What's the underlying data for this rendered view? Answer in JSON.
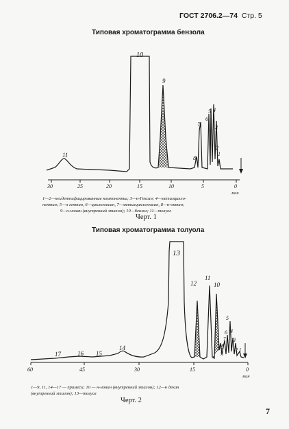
{
  "header": {
    "gost": "ГОСТ 2706.2—74",
    "page": "Стр. 5"
  },
  "figure1": {
    "title": "Типовая хроматограмма бензола",
    "peaks": [
      "11",
      "10",
      "9",
      "8",
      "7",
      "6",
      "5",
      "4",
      "3",
      "2",
      "1"
    ],
    "ticks": [
      "30",
      "25",
      "20",
      "15",
      "10",
      "5",
      "0"
    ],
    "unit": "мин",
    "caption": [
      "1—2—неидентифицированные компоненты; 3—н-Гексан; 4—метилцикло-",
      "пентан; 5—н гептан, 6—циклогексан, 7—метилциклогексан, 8—н-октан;",
      "9—н-нонан (внутренний эталон); 10—бензол; 11—толуол"
    ],
    "label": "Черт. 1"
  },
  "figure2": {
    "title": "Типовая хроматограмма толуола",
    "peaks": [
      "17",
      "16",
      "15",
      "14",
      "13",
      "12",
      "11",
      "10",
      "9",
      "8",
      "7",
      "6",
      "5",
      "4",
      "3",
      "2",
      "1"
    ],
    "ticks": [
      "60",
      "45",
      "30",
      "15",
      "0"
    ],
    "unit": "мин",
    "caption": [
      "1—9,  11,  14—17 — примеси;  10 — н-нонан  (внутренний   эталон);   12—н декан",
      "(внутренний эталон); 13—толуол"
    ],
    "label": "Черт. 2"
  },
  "page_number": "7"
}
